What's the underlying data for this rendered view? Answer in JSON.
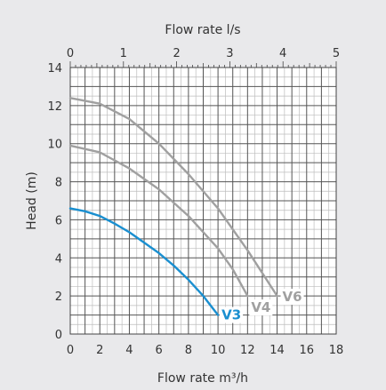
{
  "chart_data": {
    "type": "line",
    "title": "",
    "xlabel": "Flow rate m³/h",
    "ylabel": "Head (m)",
    "x2label": "Flow rate l/s",
    "xlim": [
      0,
      18
    ],
    "ylim": [
      0,
      14
    ],
    "x2lim": [
      0,
      5
    ],
    "xticks": [
      "0",
      "2",
      "4",
      "6",
      "8",
      "10",
      "12",
      "14",
      "16",
      "18"
    ],
    "yticks": [
      "0",
      "2",
      "4",
      "6",
      "8",
      "10",
      "12",
      "14"
    ],
    "x2ticks": [
      "0",
      "1",
      "2",
      "3",
      "4",
      "5"
    ],
    "grid": true,
    "series": [
      {
        "name": "V3",
        "color": "#1a8fd0",
        "x": [
          0,
          1,
          2,
          3,
          4,
          5,
          6,
          7,
          8,
          9,
          10
        ],
        "y": [
          6.6,
          6.45,
          6.2,
          5.8,
          5.35,
          4.8,
          4.25,
          3.6,
          2.85,
          2.0,
          1.0
        ]
      },
      {
        "name": "V4",
        "color": "#a0a0a0",
        "x": [
          0,
          2,
          4,
          6,
          8,
          10,
          11,
          12
        ],
        "y": [
          9.9,
          9.55,
          8.7,
          7.6,
          6.2,
          4.5,
          3.4,
          2.0
        ]
      },
      {
        "name": "V6",
        "color": "#a0a0a0",
        "x": [
          0,
          2,
          4,
          6,
          8,
          10,
          12,
          14
        ],
        "y": [
          12.4,
          12.1,
          11.3,
          10.0,
          8.4,
          6.6,
          4.4,
          2.0
        ]
      }
    ]
  }
}
